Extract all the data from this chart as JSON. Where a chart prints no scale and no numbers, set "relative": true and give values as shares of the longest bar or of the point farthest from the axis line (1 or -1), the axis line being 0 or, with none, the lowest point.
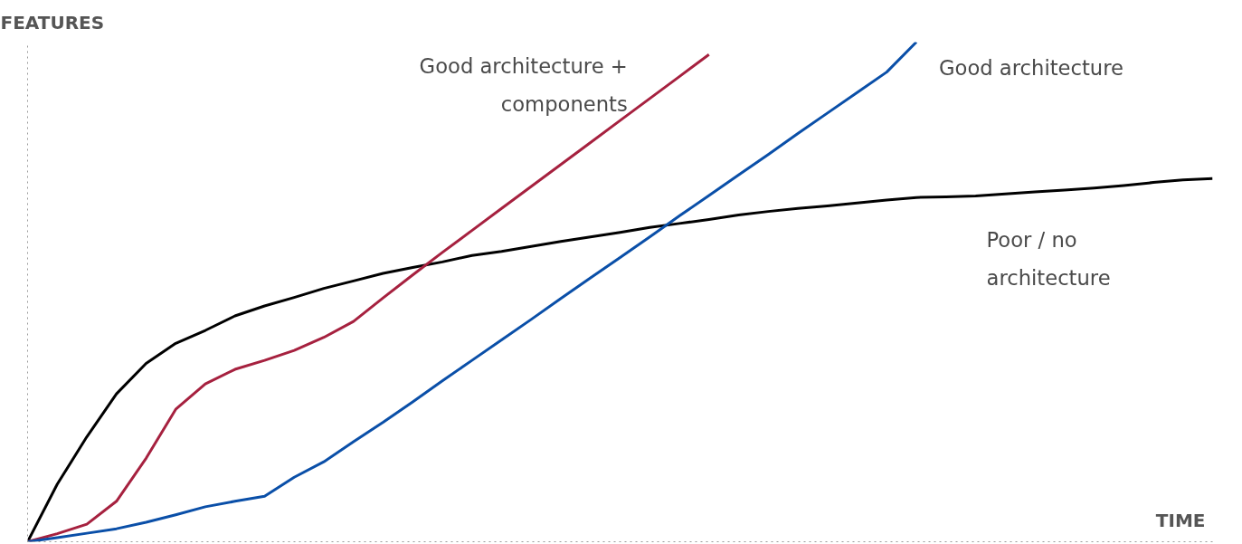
{
  "chart_data": {
    "type": "line",
    "relative": true,
    "xlabel": "TIME",
    "ylabel": "FEATURES",
    "tick_labels": false,
    "line_style": "solid",
    "categories": [
      null,
      null,
      null,
      null,
      null,
      null,
      null,
      null,
      null,
      null,
      null,
      null,
      null,
      null,
      null,
      null,
      null,
      null,
      null,
      null,
      null,
      null,
      null,
      null,
      null,
      null,
      null,
      null,
      null,
      null,
      null,
      null,
      null,
      null,
      null,
      null,
      null,
      null,
      null,
      null,
      null
    ],
    "series": [
      {
        "name": "Poor / no\narchitecture",
        "color": "#000000",
        "values": [
          0,
          0.115,
          0.21,
          0.296,
          0.357,
          0.397,
          0.423,
          0.452,
          0.472,
          0.489,
          0.507,
          0.522,
          0.537,
          0.549,
          0.56,
          0.573,
          0.581,
          0.591,
          0.601,
          0.61,
          0.619,
          0.629,
          0.637,
          0.645,
          0.654,
          0.661,
          0.667,
          0.672,
          0.678,
          0.684,
          0.689,
          0.69,
          0.692,
          0.696,
          0.7,
          0.704,
          0.708,
          0.713,
          0.719,
          0.724,
          0.727
        ]
      },
      {
        "name": "Good architecture +\ncomponents",
        "color": "#a6213f",
        "values": [
          0,
          0.016,
          0.035,
          0.081,
          0.167,
          0.265,
          0.316,
          0.345,
          0.363,
          0.383,
          0.409,
          0.441,
          0.488,
          0.534,
          0.579,
          0.623,
          0.667,
          0.711,
          0.755,
          0.799,
          0.843,
          0.887,
          0.931,
          0.975,
          null,
          null,
          null,
          null,
          null,
          null,
          null,
          null,
          null,
          null,
          null,
          null,
          null,
          null,
          null,
          null,
          null
        ]
      },
      {
        "name": "Good architecture",
        "color": "#0a4fa8",
        "values": [
          0,
          0.008,
          0.017,
          0.026,
          0.039,
          0.054,
          0.07,
          0.081,
          0.091,
          0.129,
          0.16,
          0.2,
          0.239,
          0.28,
          0.322,
          0.363,
          0.404,
          0.445,
          0.487,
          0.528,
          0.569,
          0.61,
          0.652,
          0.693,
          0.734,
          0.775,
          0.817,
          0.858,
          0.899,
          0.94,
          1.0,
          null,
          null,
          null,
          null,
          null,
          null,
          null,
          null,
          null,
          null
        ]
      }
    ]
  }
}
